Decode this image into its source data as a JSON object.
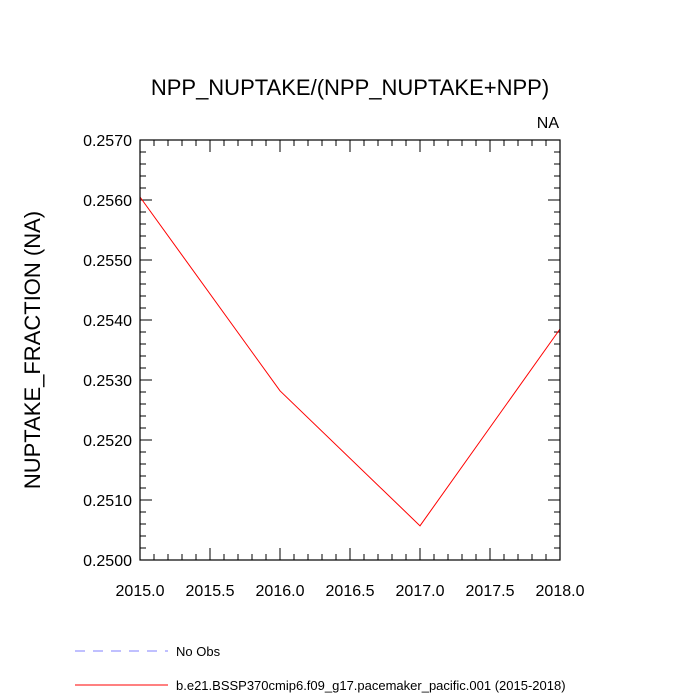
{
  "chart_data": {
    "type": "line",
    "title": "NPP_NUPTAKE/(NPP_NUPTAKE+NPP)",
    "corner_label": "NA",
    "xlabel": "",
    "ylabel": "NUPTAKE_FRACTION  (NA)",
    "xlim": [
      2015.0,
      2018.0
    ],
    "ylim": [
      0.25,
      0.257
    ],
    "x_ticks": [
      "2015.0",
      "2015.5",
      "2016.0",
      "2016.5",
      "2017.0",
      "2017.5",
      "2018.0"
    ],
    "y_ticks": [
      "0.2500",
      "0.2510",
      "0.2520",
      "0.2530",
      "0.2540",
      "0.2550",
      "0.2560",
      "0.2570"
    ],
    "grid": false,
    "legend_position": "bottom-left",
    "series": [
      {
        "name": "b.e21.BSSP370cmip6.f09_g17.pacemaker_pacific.001 (2015-2018)",
        "color": "#ff0000",
        "style": "solid",
        "x": [
          2015,
          2016,
          2017,
          2018
        ],
        "y": [
          0.25605,
          0.25282,
          0.25057,
          0.25385
        ]
      }
    ],
    "legend": [
      {
        "label": "No Obs",
        "color": "#8080ff",
        "style": "dashed"
      },
      {
        "label": "b.e21.BSSP370cmip6.f09_g17.pacemaker_pacific.001 (2015-2018)",
        "color": "#ff0000",
        "style": "solid"
      }
    ]
  }
}
